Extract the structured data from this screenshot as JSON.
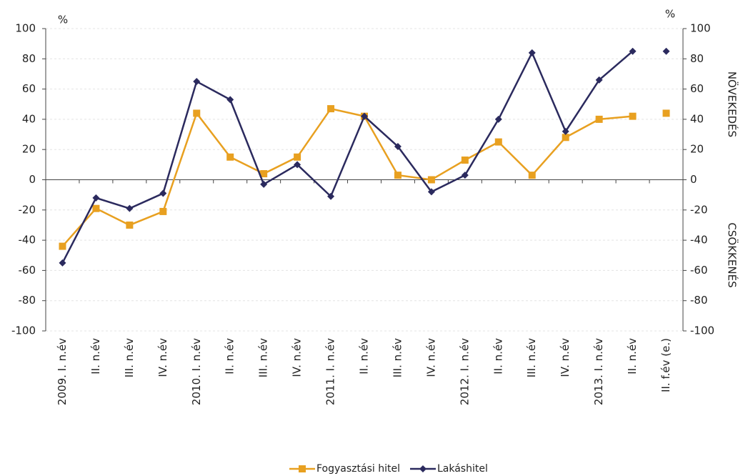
{
  "chart_data": {
    "type": "line",
    "categories": [
      "2009. I. n.év",
      "II. n.év",
      "III. n.év",
      "IV. n.év",
      "2010. I. n.év",
      "II. n.év",
      "III. n.év",
      "IV. n.év",
      "2011. I. n.év",
      "II. n.év",
      "III. n.év",
      "IV. n.év",
      "2012. I. n.év",
      "II. n.év",
      "III. n.év",
      "IV. n.év",
      "2013. I. n.év",
      "II. n.év",
      "II. f.év (e.)"
    ],
    "series": [
      {
        "name": "Fogyasztási hitel",
        "color": "#e8a020",
        "marker": "square",
        "values": [
          -44,
          -19,
          -30,
          -21,
          44,
          15,
          4,
          15,
          47,
          42,
          3,
          0,
          13,
          25,
          3,
          28,
          40,
          42,
          44
        ]
      },
      {
        "name": "Lakáshitel",
        "color": "#2b2a5e",
        "marker": "diamond",
        "values": [
          -55,
          -12,
          -19,
          -9,
          65,
          53,
          -3,
          10,
          -11,
          42,
          22,
          -8,
          3,
          40,
          84,
          32,
          66,
          85,
          85
        ]
      }
    ],
    "line_break_before_last": true,
    "ylim": [
      -100,
      100
    ],
    "yticks": [
      -100,
      -80,
      -60,
      -40,
      -20,
      0,
      20,
      40,
      60,
      80,
      100
    ],
    "y2lim": [
      -100,
      100
    ],
    "y2ticks": [
      -100,
      -80,
      -60,
      -40,
      -20,
      0,
      20,
      40,
      60,
      80,
      100
    ],
    "y_unit": "%",
    "y2_unit": "%",
    "upper_label": "NÖVEKEDÉS",
    "lower_label": "CSÖKKENÉS",
    "grid": true,
    "legend": "bottom"
  }
}
